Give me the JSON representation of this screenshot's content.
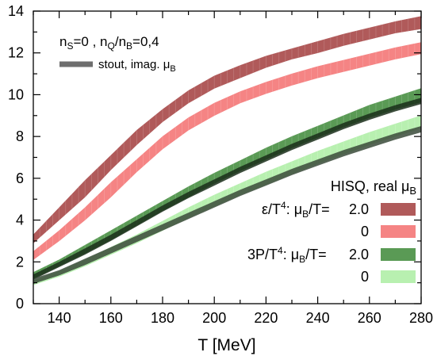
{
  "chart_data": {
    "type": "area",
    "xlabel": "T [MeV]",
    "ylabel": "",
    "xlim": [
      130,
      280
    ],
    "ylim": [
      0,
      14
    ],
    "xticks": [
      140,
      160,
      180,
      200,
      220,
      240,
      260,
      280
    ],
    "yticks": [
      0,
      2,
      4,
      6,
      8,
      10,
      12,
      14
    ],
    "grid": false,
    "legend_position": "bottom-right",
    "annotations": {
      "condition": "n_S=0 , n_Q/n_B=0,4",
      "stout_label": "stout, imag. μ_B",
      "legend_title": "HISQ, real μ_B",
      "eps_label": "ε/T⁴: μ_B/T=",
      "p_label": "3P/T⁴: μ_B/T="
    },
    "x": [
      130,
      140,
      150,
      160,
      170,
      180,
      190,
      200,
      210,
      220,
      230,
      240,
      250,
      260,
      270,
      280
    ],
    "series": [
      {
        "group": "ε/T⁴",
        "label": "2.0",
        "color": "#b05a5a",
        "lower": [
          2.9,
          4.0,
          5.1,
          6.4,
          7.6,
          8.7,
          9.6,
          10.3,
          10.8,
          11.3,
          11.7,
          12.0,
          12.35,
          12.65,
          12.95,
          13.15
        ],
        "upper": [
          3.3,
          4.6,
          5.9,
          7.1,
          8.3,
          9.3,
          10.2,
          10.9,
          11.4,
          11.85,
          12.2,
          12.55,
          12.9,
          13.2,
          13.5,
          13.75
        ]
      },
      {
        "group": "ε/T⁴",
        "label": "0",
        "color": "#f58484",
        "lower": [
          2.1,
          3.0,
          4.0,
          5.1,
          6.3,
          7.4,
          8.3,
          9.0,
          9.6,
          10.05,
          10.45,
          10.8,
          11.1,
          11.4,
          11.7,
          11.95
        ],
        "upper": [
          2.5,
          3.5,
          4.6,
          5.8,
          6.9,
          8.0,
          8.9,
          9.6,
          10.15,
          10.6,
          11.0,
          11.35,
          11.65,
          11.95,
          12.25,
          12.5
        ]
      },
      {
        "group": "3P/T⁴",
        "label": "2.0",
        "color": "#5a9a55",
        "lower": [
          1.2,
          1.8,
          2.4,
          3.05,
          3.75,
          4.45,
          5.1,
          5.75,
          6.35,
          6.9,
          7.45,
          7.95,
          8.45,
          8.9,
          9.3,
          9.65
        ],
        "upper": [
          1.5,
          2.1,
          2.8,
          3.5,
          4.2,
          4.9,
          5.6,
          6.25,
          6.85,
          7.45,
          8.0,
          8.5,
          9.0,
          9.5,
          9.9,
          10.3
        ]
      },
      {
        "group": "3P/T⁴",
        "label": "0",
        "color": "#b8f0b0",
        "lower": [
          0.9,
          1.3,
          1.8,
          2.35,
          2.9,
          3.5,
          4.1,
          4.65,
          5.2,
          5.7,
          6.2,
          6.7,
          7.15,
          7.6,
          8.0,
          8.4
        ],
        "upper": [
          1.1,
          1.55,
          2.1,
          2.7,
          3.3,
          3.95,
          4.6,
          5.2,
          5.75,
          6.3,
          6.8,
          7.3,
          7.75,
          8.2,
          8.6,
          9.0
        ]
      }
    ],
    "stout_bands": [
      {
        "label": "stout μ_B/T=2.0",
        "color": "#1a2e1a",
        "lower": [
          1.15,
          1.75,
          2.35,
          3.0,
          3.7,
          4.4,
          5.05,
          5.65,
          6.25,
          6.8,
          7.35,
          7.85,
          8.35,
          8.8,
          9.2,
          9.55
        ],
        "upper": [
          1.4,
          2.0,
          2.65,
          3.3,
          4.0,
          4.7,
          5.35,
          5.95,
          6.55,
          7.1,
          7.65,
          8.15,
          8.65,
          9.1,
          9.5,
          9.85
        ]
      },
      {
        "label": "stout μ_B/T=0",
        "color": "#3a4a3a",
        "lower": [
          0.95,
          1.35,
          1.85,
          2.4,
          2.95,
          3.5,
          4.05,
          4.6,
          5.15,
          5.65,
          6.15,
          6.6,
          7.05,
          7.45,
          7.85,
          8.2
        ],
        "upper": [
          1.2,
          1.6,
          2.15,
          2.7,
          3.25,
          3.8,
          4.35,
          4.9,
          5.45,
          5.95,
          6.45,
          6.9,
          7.35,
          7.75,
          8.15,
          8.5
        ]
      }
    ]
  }
}
